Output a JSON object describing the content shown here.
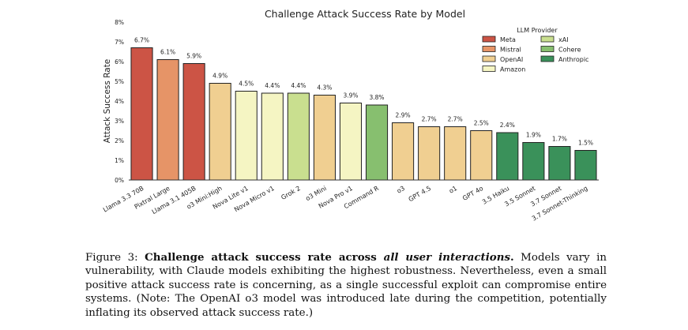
{
  "caption": {
    "label": "Figure 3:",
    "bold_start": "Challenge attack success rate across ",
    "bold_italic": "all user interactions",
    "bold_end": ".",
    "text": " Models vary in vulnerability, with Claude models exhibiting the highest robustness. Nevertheless, even a small positive attack success rate is concerning, as a single successful exploit can compromise entire systems. (Note: The OpenAI o3 model was introduced late during the competition, potentially inflating its observed attack success rate.)"
  },
  "chart_data": {
    "type": "bar",
    "title": "Challenge Attack Success Rate by Model",
    "xlabel": "",
    "ylabel": "Attack Success Rate",
    "ylim": [
      0,
      8
    ],
    "yticks": [
      "0%",
      "1%",
      "2%",
      "3%",
      "4%",
      "5%",
      "6%",
      "7%",
      "8%"
    ],
    "grid": false,
    "legend": {
      "title": "LLM Provider",
      "placement": "top-right",
      "entries": [
        {
          "name": "Meta",
          "color": "#cc5445"
        },
        {
          "name": "Mistral",
          "color": "#e69467"
        },
        {
          "name": "OpenAI",
          "color": "#f0cf91"
        },
        {
          "name": "Amazon",
          "color": "#f5f5c3"
        },
        {
          "name": "xAI",
          "color": "#c9df8f"
        },
        {
          "name": "Cohere",
          "color": "#87bf6f"
        },
        {
          "name": "Anthropic",
          "color": "#3a915a"
        }
      ]
    },
    "bars": [
      {
        "category": "Llama 3.3 70B",
        "value": 6.7,
        "label": "6.7%",
        "provider": "Meta"
      },
      {
        "category": "Pixtral Large",
        "value": 6.1,
        "label": "6.1%",
        "provider": "Mistral"
      },
      {
        "category": "Llama 3.1 405B",
        "value": 5.9,
        "label": "5.9%",
        "provider": "Meta"
      },
      {
        "category": "o3 Mini:High",
        "value": 4.9,
        "label": "4.9%",
        "provider": "OpenAI"
      },
      {
        "category": "Nova Lite v1",
        "value": 4.5,
        "label": "4.5%",
        "provider": "Amazon"
      },
      {
        "category": "Nova Micro v1",
        "value": 4.4,
        "label": "4.4%",
        "provider": "Amazon"
      },
      {
        "category": "Grok 2",
        "value": 4.4,
        "label": "4.4%",
        "provider": "xAI"
      },
      {
        "category": "o3 Mini",
        "value": 4.3,
        "label": "4.3%",
        "provider": "OpenAI"
      },
      {
        "category": "Nova Pro v1",
        "value": 3.9,
        "label": "3.9%",
        "provider": "Amazon"
      },
      {
        "category": "Command R",
        "value": 3.8,
        "label": "3.8%",
        "provider": "Cohere"
      },
      {
        "category": "o3",
        "value": 2.9,
        "label": "2.9%",
        "provider": "OpenAI"
      },
      {
        "category": "GPT 4.5",
        "value": 2.7,
        "label": "2.7%",
        "provider": "OpenAI"
      },
      {
        "category": "o1",
        "value": 2.7,
        "label": "2.7%",
        "provider": "OpenAI"
      },
      {
        "category": "GPT 4o",
        "value": 2.5,
        "label": "2.5%",
        "provider": "OpenAI"
      },
      {
        "category": "3.5 Haiku",
        "value": 2.4,
        "label": "2.4%",
        "provider": "Anthropic"
      },
      {
        "category": "3.5 Sonnet",
        "value": 1.9,
        "label": "1.9%",
        "provider": "Anthropic"
      },
      {
        "category": "3.7 Sonnet",
        "value": 1.7,
        "label": "1.7%",
        "provider": "Anthropic"
      },
      {
        "category": "3.7 Sonnet-Thinking",
        "value": 1.5,
        "label": "1.5%",
        "provider": "Anthropic"
      }
    ]
  }
}
